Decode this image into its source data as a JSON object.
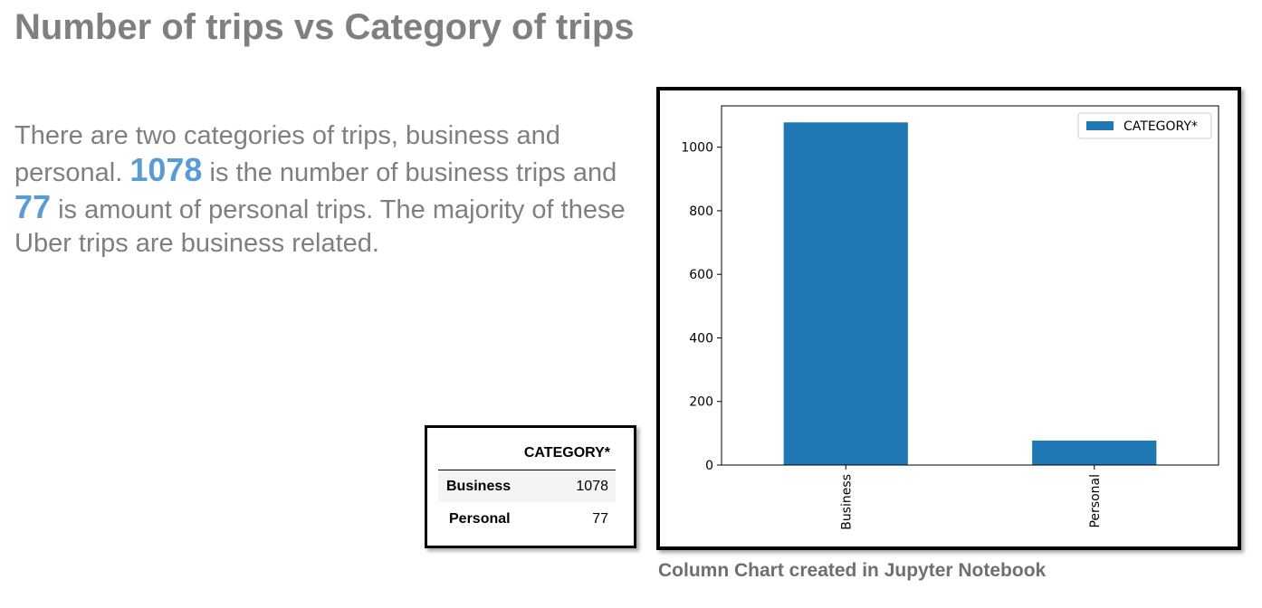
{
  "title": "Number of trips vs Category of trips",
  "description": {
    "part1": "There are two categories of trips, business and personal. ",
    "business_count": "1078",
    "part2": " is the number of business trips and ",
    "personal_count": "77",
    "part3": " is amount of personal trips. The majority of these Uber trips are business related."
  },
  "table": {
    "column_header": "CATEGORY*",
    "rows": [
      {
        "label": "Business",
        "value": "1078"
      },
      {
        "label": "Personal",
        "value": "77"
      }
    ]
  },
  "chart_data": {
    "type": "bar",
    "categories": [
      "Business",
      "Personal"
    ],
    "series": [
      {
        "name": "CATEGORY*",
        "values": [
          1078,
          77
        ]
      }
    ],
    "title": "",
    "xlabel": "",
    "ylabel": "",
    "ylim": [
      0,
      1130
    ],
    "yticks": [
      0,
      200,
      400,
      600,
      800,
      1000
    ],
    "grid": false,
    "legend": "top-right",
    "bar_color": "#1f77b4"
  },
  "caption": "Column Chart created in Jupyter Notebook",
  "colors": {
    "title_gray": "#7f7f7f",
    "highlight_blue": "#5b9bd5",
    "bar_blue": "#1f77b4"
  }
}
